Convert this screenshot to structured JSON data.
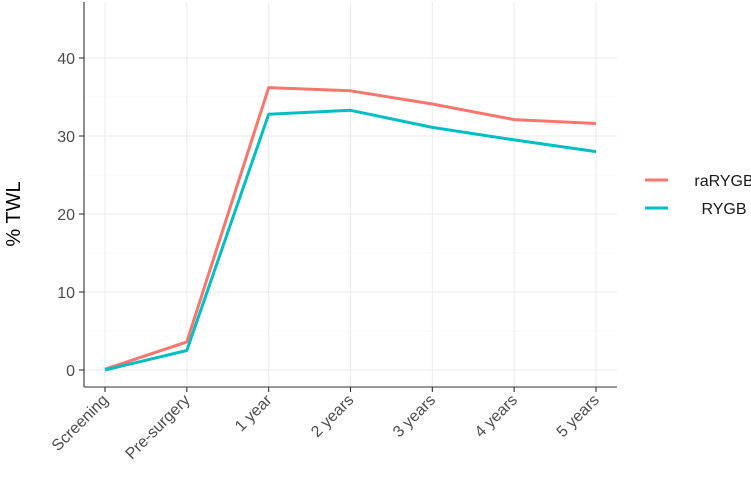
{
  "chart_data": {
    "type": "line",
    "title": "",
    "xlabel": "",
    "ylabel": "% TWL",
    "categories": [
      "Screening",
      "Pre-surgery",
      "1 year",
      "2 years",
      "3 years",
      "4 years",
      "5 years"
    ],
    "ylim": [
      0,
      45
    ],
    "yticks": [
      0,
      10,
      20,
      30,
      40
    ],
    "grid": true,
    "legend_position": "right",
    "series": [
      {
        "name": "raRYGB",
        "color": "#F8766D",
        "values": [
          0.1,
          3.6,
          36.2,
          35.8,
          34.1,
          32.1,
          31.6
        ]
      },
      {
        "name": "RYGB",
        "color": "#00BFC4",
        "values": [
          0.0,
          2.5,
          32.8,
          33.3,
          31.1,
          29.5,
          28.0
        ]
      }
    ]
  }
}
